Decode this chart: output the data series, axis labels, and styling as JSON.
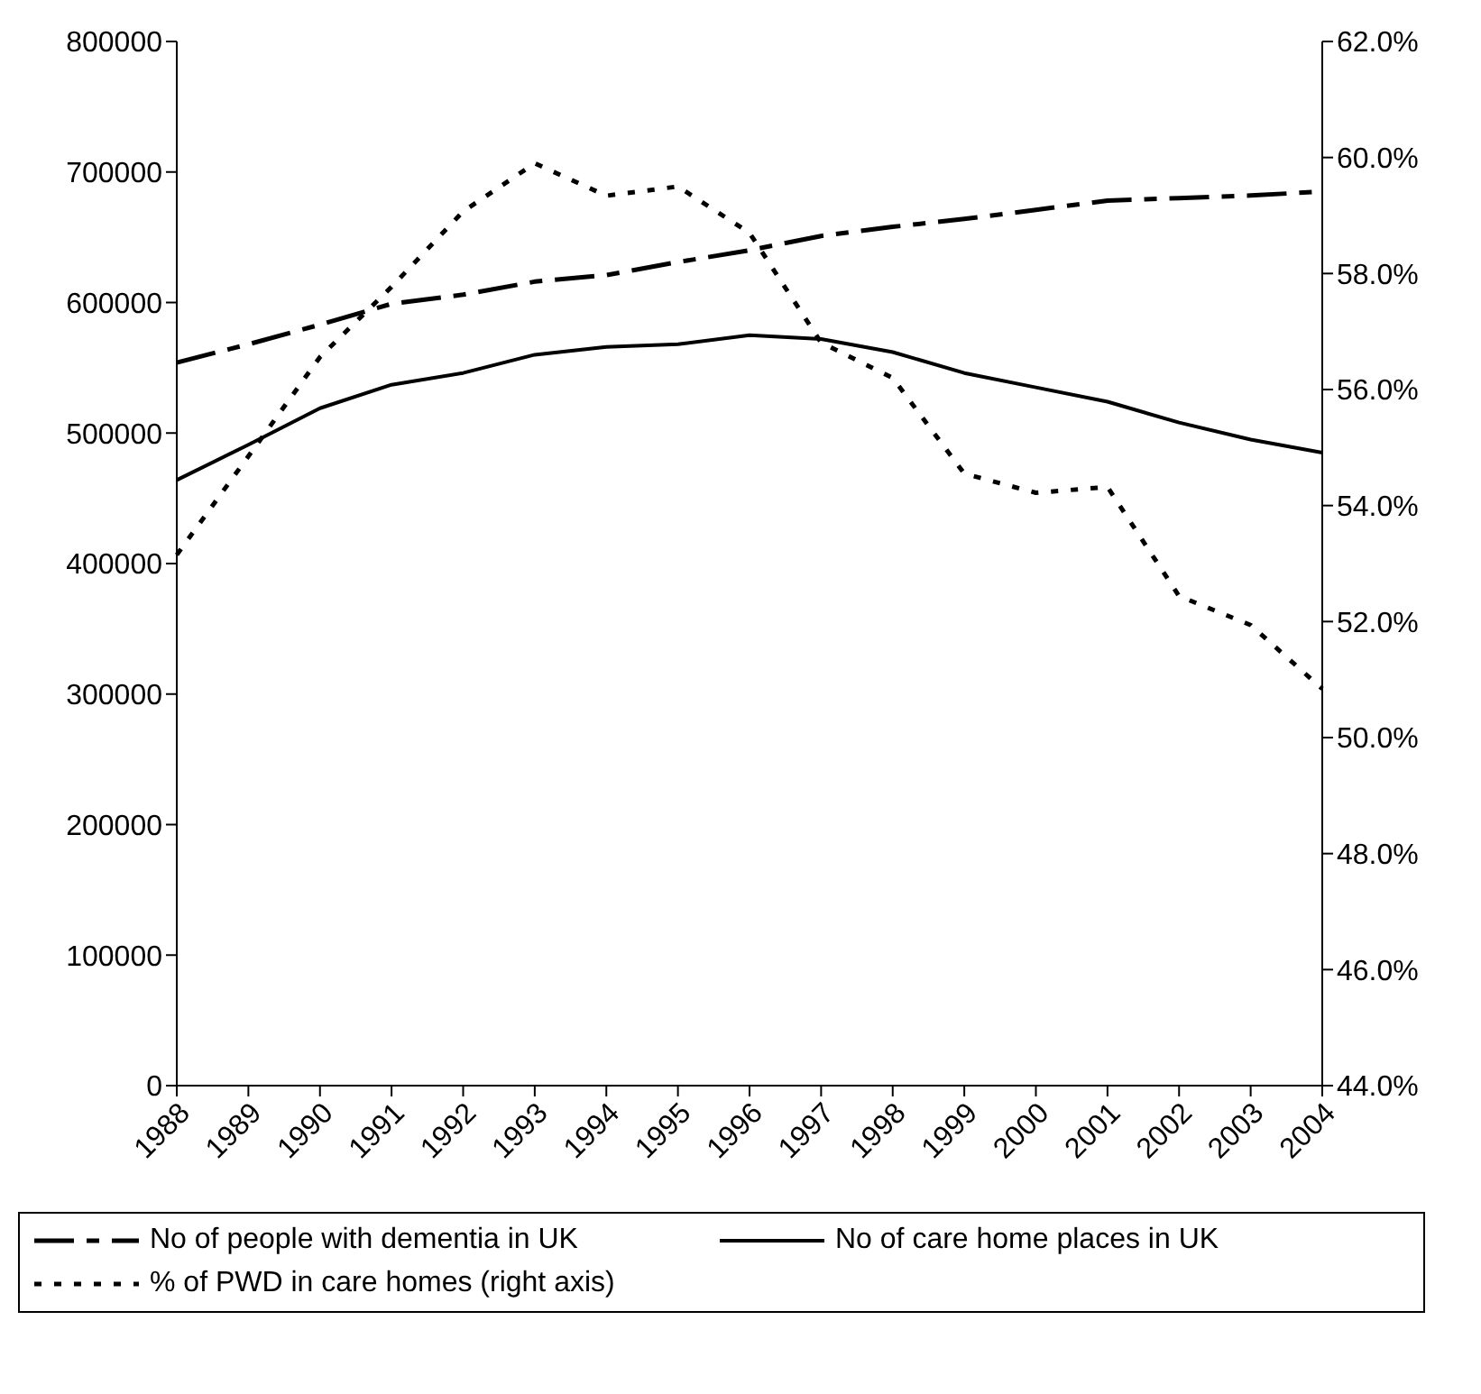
{
  "chart_data": {
    "type": "line",
    "categories": [
      "1988",
      "1989",
      "1990",
      "1991",
      "1992",
      "1993",
      "1994",
      "1995",
      "1996",
      "1997",
      "1998",
      "1999",
      "2000",
      "2001",
      "2002",
      "2003",
      "2004"
    ],
    "series": [
      {
        "name": "No of people with dementia in UK",
        "color": "#000000",
        "line_style": "dashed",
        "values": [
          554000,
          568000,
          583000,
          599000,
          606000,
          616000,
          621000,
          631000,
          640000,
          651000,
          658000,
          664000,
          671000,
          678000,
          680000,
          682000,
          685000
        ]
      },
      {
        "name": "No of care home places in UK",
        "color": "#000000",
        "line_style": "solid",
        "values": [
          464000,
          491000,
          519000,
          537000,
          546000,
          560000,
          566000,
          568000,
          575000,
          572000,
          562000,
          546000,
          535000,
          524000,
          508000,
          495000,
          485000
        ]
      },
      {
        "name": "% of PWD in care homes (right axis)",
        "color": "#000000",
        "line_style": "dotted",
        "axis": "y2",
        "values": [
          53.15,
          54.85,
          56.56,
          57.77,
          59.07,
          59.9,
          59.34,
          59.5,
          58.7,
          56.81,
          56.2,
          54.55,
          54.22,
          54.32,
          52.44,
          51.94,
          50.84
        ]
      }
    ],
    "ylim": [
      0,
      800000
    ],
    "yticks": [
      0,
      100000,
      200000,
      300000,
      400000,
      500000,
      600000,
      700000,
      800000
    ],
    "y2lim": [
      44,
      62
    ],
    "y2ticks": [
      {
        "value": 44,
        "label": "44.0%"
      },
      {
        "value": 46,
        "label": "46.0%"
      },
      {
        "value": 48,
        "label": "48.0%"
      },
      {
        "value": 50,
        "label": "50.0%"
      },
      {
        "value": 52,
        "label": "52.0%"
      },
      {
        "value": 54,
        "label": "54.0%"
      },
      {
        "value": 56,
        "label": "56.0%"
      },
      {
        "value": 58,
        "label": "58.0%"
      },
      {
        "value": 60,
        "label": "60.0%"
      },
      {
        "value": 62,
        "label": "62.0%"
      }
    ],
    "grid": false,
    "legend": "bottom",
    "marker": "none"
  }
}
